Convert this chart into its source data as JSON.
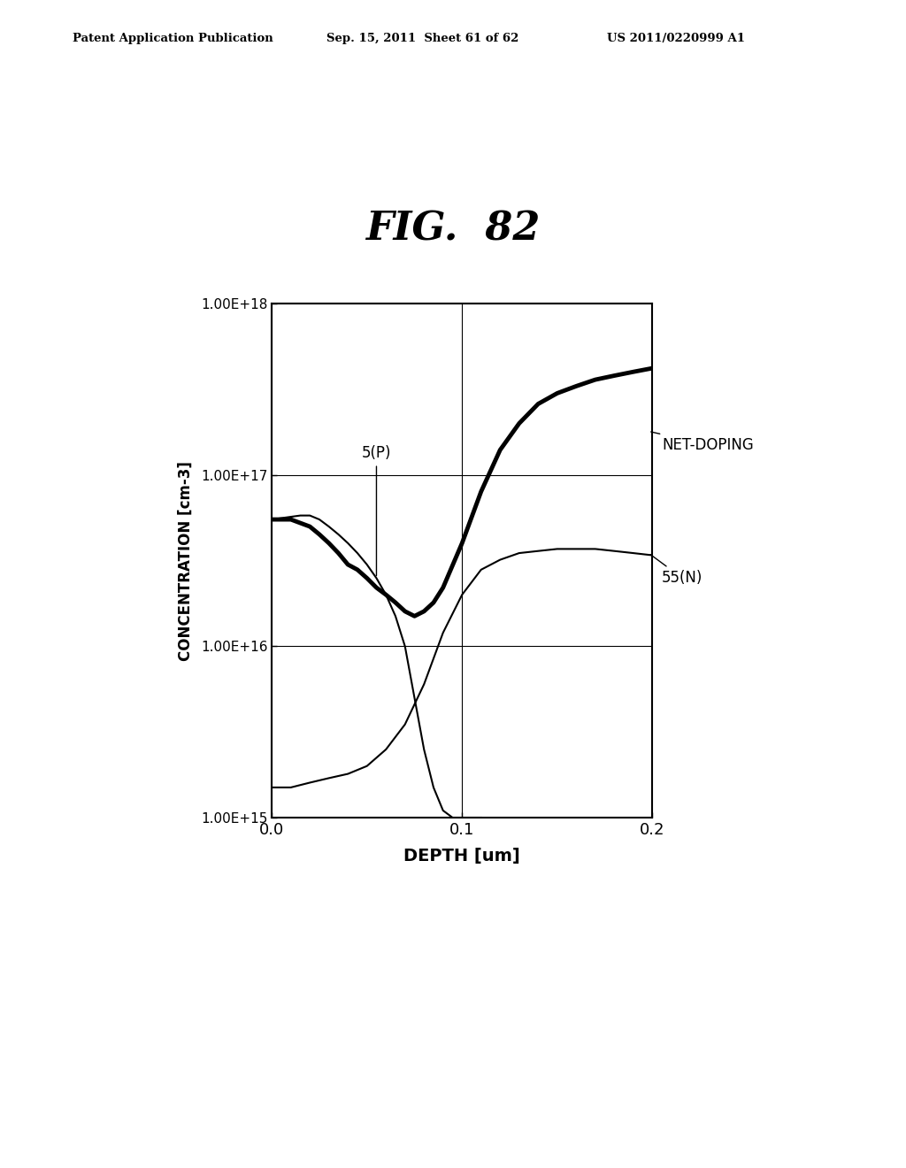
{
  "title": "FIG.  82",
  "xlabel": "DEPTH [um]",
  "ylabel": "CONCENTRATION [cm-3]",
  "header_left": "Patent Application Publication",
  "header_mid": "Sep. 15, 2011  Sheet 61 of 62",
  "header_right": "US 2011/0220999 A1",
  "xlim": [
    0.0,
    0.2
  ],
  "ylim_log": [
    15,
    18
  ],
  "yticks": [
    1000000000000000.0,
    1e+16,
    1e+17,
    1e+18
  ],
  "ytick_labels": [
    "1.00E+15",
    "1.00E+16",
    "1.00E+17",
    "1.00E+18"
  ],
  "xticks": [
    0.0,
    0.1,
    0.2
  ],
  "xtick_labels": [
    "0.0",
    "0.1",
    "0.2"
  ],
  "background_color": "#ffffff",
  "annotation_5P": "5(P)",
  "annotation_net": "NET-DOPING",
  "annotation_55N": "55(N)",
  "curve_5p_x": [
    0.0,
    0.005,
    0.01,
    0.015,
    0.02,
    0.025,
    0.03,
    0.035,
    0.04,
    0.045,
    0.05,
    0.055,
    0.06,
    0.065,
    0.07,
    0.075,
    0.08,
    0.085,
    0.09,
    0.095,
    0.1,
    0.105,
    0.11
  ],
  "curve_5p_y": [
    5.5e+16,
    5.6e+16,
    5.7e+16,
    5.8e+16,
    5.8e+16,
    5.5e+16,
    5e+16,
    4.5e+16,
    4e+16,
    3.5e+16,
    3e+16,
    2.5e+16,
    2e+16,
    1.5e+16,
    1e+16,
    5000000000000000.0,
    2500000000000000.0,
    1500000000000000.0,
    1100000000000000.0,
    1000000000000000.0,
    1000000000000000.0,
    1000000000000000.0,
    1000000000000000.0
  ],
  "curve_net_x": [
    0.0,
    0.01,
    0.02,
    0.025,
    0.03,
    0.035,
    0.04,
    0.045,
    0.05,
    0.055,
    0.06,
    0.065,
    0.07,
    0.075,
    0.08,
    0.085,
    0.09,
    0.1,
    0.11,
    0.12,
    0.13,
    0.14,
    0.15,
    0.16,
    0.17,
    0.18,
    0.19,
    0.2
  ],
  "curve_net_y": [
    5.5e+16,
    5.5e+16,
    5e+16,
    4.5e+16,
    4e+16,
    3.5e+16,
    3e+16,
    2.8e+16,
    2.5e+16,
    2.2e+16,
    2e+16,
    1.8e+16,
    1.6e+16,
    1.5e+16,
    1.6e+16,
    1.8e+16,
    2.2e+16,
    4e+16,
    8e+16,
    1.4e+17,
    2e+17,
    2.6e+17,
    3e+17,
    3.3e+17,
    3.6e+17,
    3.8e+17,
    4e+17,
    4.2e+17
  ],
  "curve_55n_x": [
    0.0,
    0.01,
    0.02,
    0.03,
    0.04,
    0.05,
    0.06,
    0.07,
    0.08,
    0.09,
    0.1,
    0.11,
    0.12,
    0.13,
    0.14,
    0.15,
    0.16,
    0.17,
    0.18,
    0.19,
    0.2
  ],
  "curve_55n_y": [
    1500000000000000.0,
    1500000000000000.0,
    1600000000000000.0,
    1700000000000000.0,
    1800000000000000.0,
    2000000000000000.0,
    2500000000000000.0,
    3500000000000000.0,
    6000000000000000.0,
    1.2e+16,
    2e+16,
    2.8e+16,
    3.2e+16,
    3.5e+16,
    3.6e+16,
    3.7e+16,
    3.7e+16,
    3.7e+16,
    3.6e+16,
    3.5e+16,
    3.4e+16
  ]
}
